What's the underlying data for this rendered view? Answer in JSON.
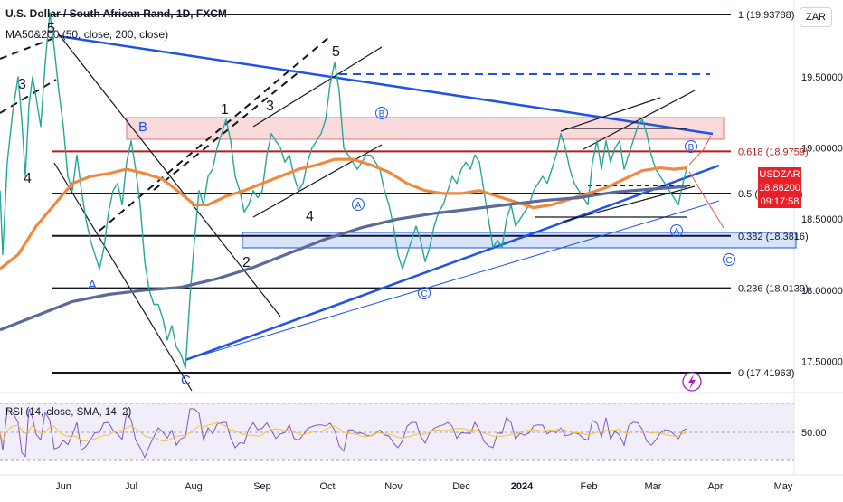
{
  "header": {
    "symbol_line": "U.S. Dollar / South African Rand, 1D, FXCM",
    "indicator_line": "MA50&200 (50, close, 200, close)",
    "currency_button": "ZAR"
  },
  "price_tag": {
    "symbol": "USDZAR",
    "price": "18.88200",
    "countdown": "09:17:58"
  },
  "rsi": {
    "label": "RSI (14, close, SMA, 14, 2)",
    "level_label": "50.00"
  },
  "chart_data": {
    "type": "line",
    "title": "U.S. Dollar / South African Rand, 1D, FXCM",
    "x_ticks": [
      "Jun",
      "Jul",
      "Aug",
      "Sep",
      "Oct",
      "Nov",
      "Dec",
      "2024",
      "Feb",
      "Mar",
      "Apr",
      "May"
    ],
    "y_ticks": [
      "19.50000",
      "19.00000",
      "18.50000",
      "18.00000",
      "17.50000"
    ],
    "ylim": [
      17.28,
      20.04
    ],
    "last_price": 18.882,
    "fib_levels": [
      {
        "label": "1 (19.93788)",
        "value": 19.93788,
        "color": "#131722"
      },
      {
        "label": "0.618 (18.9759)",
        "value": 18.9759,
        "color": "#b71c1c"
      },
      {
        "label": "0.5 (18.67876)",
        "value": 18.67876,
        "color": "#131722"
      },
      {
        "label": "0.382 (18.3816)",
        "value": 18.3816,
        "color": "#131722"
      },
      {
        "label": "0.236 (18.0139)",
        "value": 18.0139,
        "color": "#131722"
      },
      {
        "label": "0 (17.41963)",
        "value": 17.41963,
        "color": "#131722"
      }
    ],
    "series": [
      {
        "key": "price",
        "color": "#26a69a",
        "points": [
          [
            0,
            18.7
          ],
          [
            3,
            18.25
          ],
          [
            8,
            18.9
          ],
          [
            14,
            19.25
          ],
          [
            20,
            19.5
          ],
          [
            24,
            19.2
          ],
          [
            28,
            18.8
          ],
          [
            32,
            19.3
          ],
          [
            36,
            19.5
          ],
          [
            40,
            19.35
          ],
          [
            45,
            19.15
          ],
          [
            50,
            19.6
          ],
          [
            55,
            19.95
          ],
          [
            60,
            19.7
          ],
          [
            65,
            19.4
          ],
          [
            70,
            19.15
          ],
          [
            75,
            18.8
          ],
          [
            80,
            18.7
          ],
          [
            85,
            18.95
          ],
          [
            90,
            18.7
          ],
          [
            95,
            18.5
          ],
          [
            100,
            18.35
          ],
          [
            105,
            18.25
          ],
          [
            110,
            18.15
          ],
          [
            115,
            18.3
          ],
          [
            120,
            18.55
          ],
          [
            125,
            18.7
          ],
          [
            130,
            18.75
          ],
          [
            135,
            18.6
          ],
          [
            140,
            18.9
          ],
          [
            145,
            19.05
          ],
          [
            150,
            18.85
          ],
          [
            155,
            18.6
          ],
          [
            160,
            18.2
          ],
          [
            165,
            18.0
          ],
          [
            170,
            17.9
          ],
          [
            175,
            17.9
          ],
          [
            180,
            17.8
          ],
          [
            185,
            17.65
          ],
          [
            190,
            17.75
          ],
          [
            195,
            17.6
          ],
          [
            200,
            17.55
          ],
          [
            205,
            17.45
          ],
          [
            210,
            17.95
          ],
          [
            215,
            18.35
          ],
          [
            220,
            18.7
          ],
          [
            225,
            18.6
          ],
          [
            230,
            18.8
          ],
          [
            235,
            18.85
          ],
          [
            240,
            19.0
          ],
          [
            245,
            19.1
          ],
          [
            250,
            19.2
          ],
          [
            255,
            19.05
          ],
          [
            260,
            18.8
          ],
          [
            265,
            18.7
          ],
          [
            270,
            18.55
          ],
          [
            275,
            18.6
          ],
          [
            280,
            18.7
          ],
          [
            285,
            18.65
          ],
          [
            290,
            18.7
          ],
          [
            295,
            18.95
          ],
          [
            300,
            19.1
          ],
          [
            305,
            19.05
          ],
          [
            310,
            19.0
          ],
          [
            315,
            18.9
          ],
          [
            320,
            18.95
          ],
          [
            325,
            18.8
          ],
          [
            330,
            18.7
          ],
          [
            335,
            18.75
          ],
          [
            340,
            18.9
          ],
          [
            345,
            19.0
          ],
          [
            350,
            19.05
          ],
          [
            355,
            19.1
          ],
          [
            360,
            19.2
          ],
          [
            365,
            19.45
          ],
          [
            370,
            19.6
          ],
          [
            375,
            19.4
          ],
          [
            380,
            19.0
          ],
          [
            385,
            18.95
          ],
          [
            390,
            18.9
          ],
          [
            395,
            18.85
          ],
          [
            400,
            18.9
          ],
          [
            405,
            18.95
          ],
          [
            410,
            18.95
          ],
          [
            415,
            18.9
          ],
          [
            420,
            18.85
          ],
          [
            425,
            18.7
          ],
          [
            430,
            18.6
          ],
          [
            435,
            18.45
          ],
          [
            440,
            18.25
          ],
          [
            445,
            18.15
          ],
          [
            450,
            18.25
          ],
          [
            455,
            18.35
          ],
          [
            460,
            18.45
          ],
          [
            465,
            18.35
          ],
          [
            470,
            18.2
          ],
          [
            475,
            18.3
          ],
          [
            480,
            18.45
          ],
          [
            485,
            18.55
          ],
          [
            490,
            18.6
          ],
          [
            495,
            18.7
          ],
          [
            500,
            18.8
          ],
          [
            505,
            18.75
          ],
          [
            510,
            18.85
          ],
          [
            515,
            18.9
          ],
          [
            520,
            18.85
          ],
          [
            525,
            18.95
          ],
          [
            530,
            18.9
          ],
          [
            535,
            18.7
          ],
          [
            540,
            18.5
          ],
          [
            545,
            18.3
          ],
          [
            550,
            18.35
          ],
          [
            555,
            18.3
          ],
          [
            560,
            18.5
          ],
          [
            565,
            18.6
          ],
          [
            570,
            18.45
          ],
          [
            575,
            18.5
          ],
          [
            580,
            18.55
          ],
          [
            585,
            18.6
          ],
          [
            590,
            18.7
          ],
          [
            595,
            18.75
          ],
          [
            600,
            18.8
          ],
          [
            605,
            18.75
          ],
          [
            610,
            18.85
          ],
          [
            615,
            18.95
          ],
          [
            620,
            19.1
          ],
          [
            625,
            19.0
          ],
          [
            630,
            18.85
          ],
          [
            635,
            18.75
          ],
          [
            640,
            18.7
          ],
          [
            645,
            18.65
          ],
          [
            650,
            18.6
          ],
          [
            655,
            18.9
          ],
          [
            660,
            19.05
          ],
          [
            665,
            18.85
          ],
          [
            670,
            19.05
          ],
          [
            675,
            18.9
          ],
          [
            680,
            19.0
          ],
          [
            685,
            19.05
          ],
          [
            690,
            18.85
          ],
          [
            695,
            18.95
          ],
          [
            700,
            19.05
          ],
          [
            705,
            19.15
          ],
          [
            710,
            19.2
          ],
          [
            715,
            19.1
          ],
          [
            720,
            18.95
          ],
          [
            725,
            18.85
          ],
          [
            730,
            18.8
          ],
          [
            735,
            18.75
          ],
          [
            740,
            18.7
          ],
          [
            745,
            18.65
          ],
          [
            750,
            18.6
          ],
          [
            755,
            18.75
          ],
          [
            760,
            18.88
          ]
        ]
      },
      {
        "key": "ma50",
        "color": "#f0883e",
        "points": [
          [
            0,
            18.15
          ],
          [
            20,
            18.25
          ],
          [
            40,
            18.45
          ],
          [
            60,
            18.6
          ],
          [
            80,
            18.75
          ],
          [
            100,
            18.8
          ],
          [
            120,
            18.82
          ],
          [
            140,
            18.85
          ],
          [
            160,
            18.82
          ],
          [
            180,
            18.78
          ],
          [
            200,
            18.68
          ],
          [
            215,
            18.6
          ],
          [
            230,
            18.6
          ],
          [
            250,
            18.66
          ],
          [
            270,
            18.7
          ],
          [
            290,
            18.75
          ],
          [
            310,
            18.8
          ],
          [
            330,
            18.85
          ],
          [
            350,
            18.88
          ],
          [
            370,
            18.92
          ],
          [
            390,
            18.92
          ],
          [
            410,
            18.88
          ],
          [
            430,
            18.83
          ],
          [
            450,
            18.75
          ],
          [
            470,
            18.7
          ],
          [
            490,
            18.68
          ],
          [
            510,
            18.68
          ],
          [
            530,
            18.7
          ],
          [
            550,
            18.66
          ],
          [
            570,
            18.62
          ],
          [
            590,
            18.58
          ],
          [
            610,
            18.6
          ],
          [
            630,
            18.64
          ],
          [
            650,
            18.68
          ],
          [
            670,
            18.72
          ],
          [
            690,
            18.78
          ],
          [
            710,
            18.84
          ],
          [
            730,
            18.86
          ],
          [
            745,
            18.85
          ],
          [
            760,
            18.86
          ]
        ]
      },
      {
        "key": "ma200",
        "color": "#5b6a9a",
        "points": [
          [
            0,
            17.72
          ],
          [
            40,
            17.82
          ],
          [
            80,
            17.92
          ],
          [
            120,
            17.97
          ],
          [
            160,
            18.0
          ],
          [
            200,
            18.02
          ],
          [
            240,
            18.08
          ],
          [
            280,
            18.16
          ],
          [
            320,
            18.26
          ],
          [
            360,
            18.36
          ],
          [
            400,
            18.44
          ],
          [
            440,
            18.5
          ],
          [
            480,
            18.54
          ],
          [
            520,
            18.57
          ],
          [
            560,
            18.6
          ],
          [
            600,
            18.63
          ],
          [
            640,
            18.65
          ],
          [
            680,
            18.69
          ],
          [
            720,
            18.71
          ],
          [
            760,
            18.73
          ]
        ]
      }
    ]
  },
  "annotations": {
    "wave_labels": [
      "3",
      "4",
      "5",
      "A",
      "2",
      "C",
      "1",
      "3",
      "5",
      "4",
      "B"
    ],
    "circle_labels": [
      "B",
      "A",
      "C",
      "B",
      "A",
      "C"
    ]
  }
}
